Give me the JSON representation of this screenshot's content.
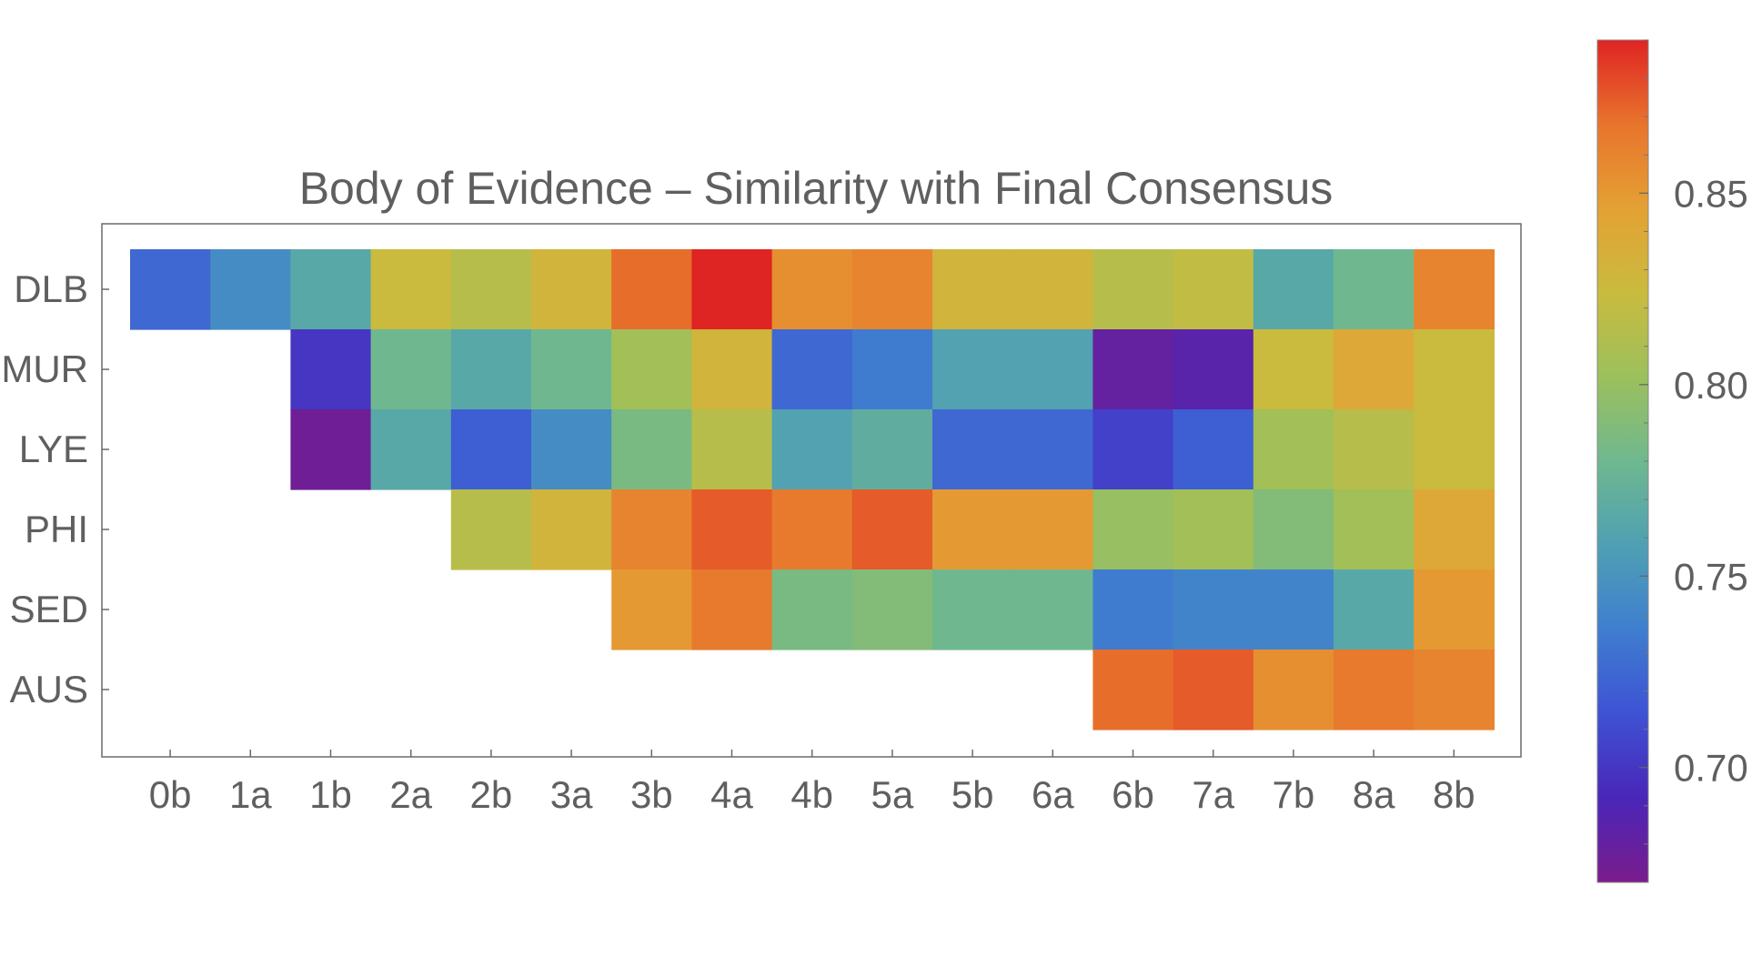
{
  "chart_data": {
    "type": "heatmap",
    "title": "Body of Evidence – Similarity with Final Consensus",
    "columns": [
      "0b",
      "1a",
      "1b",
      "2a",
      "2b",
      "3a",
      "3b",
      "4a",
      "4b",
      "5a",
      "5b",
      "6a",
      "6b",
      "7a",
      "7b",
      "8a",
      "8b"
    ],
    "rows": [
      "DLB",
      "MUR",
      "LYE",
      "PHI",
      "SED",
      "AUS"
    ],
    "values": [
      [
        0.725,
        0.745,
        0.765,
        0.825,
        0.815,
        0.83,
        0.87,
        0.89,
        0.855,
        0.86,
        0.83,
        0.83,
        0.815,
        0.82,
        0.765,
        0.78,
        0.86
      ],
      [
        null,
        null,
        0.7,
        0.78,
        0.765,
        0.78,
        0.805,
        0.83,
        0.725,
        0.735,
        0.76,
        0.76,
        0.68,
        0.685,
        0.825,
        0.84,
        0.825
      ],
      [
        null,
        null,
        0.675,
        0.765,
        0.72,
        0.745,
        0.785,
        0.815,
        0.76,
        0.77,
        0.725,
        0.725,
        0.705,
        0.72,
        0.805,
        0.815,
        0.825
      ],
      [
        null,
        null,
        null,
        null,
        0.815,
        0.83,
        0.86,
        0.875,
        0.865,
        0.875,
        0.85,
        0.85,
        0.8,
        0.805,
        0.79,
        0.805,
        0.84
      ],
      [
        null,
        null,
        null,
        null,
        null,
        null,
        0.85,
        0.865,
        0.785,
        0.79,
        0.78,
        0.78,
        0.735,
        0.74,
        0.74,
        0.765,
        0.85
      ],
      [
        null,
        null,
        null,
        null,
        null,
        null,
        null,
        null,
        null,
        null,
        null,
        null,
        0.87,
        0.875,
        0.855,
        0.865,
        0.86
      ]
    ],
    "colorbar": {
      "min": 0.67,
      "max": 0.89,
      "ticks": [
        "0.70",
        "0.75",
        "0.80",
        "0.85"
      ],
      "colors": [
        "#7a1c8c",
        "#4a26b8",
        "#3e52d4",
        "#3f7ecf",
        "#4fa0b4",
        "#6fb88f",
        "#9cc05c",
        "#c9bb3e",
        "#e4a134",
        "#e8742c",
        "#df2424"
      ]
    }
  }
}
